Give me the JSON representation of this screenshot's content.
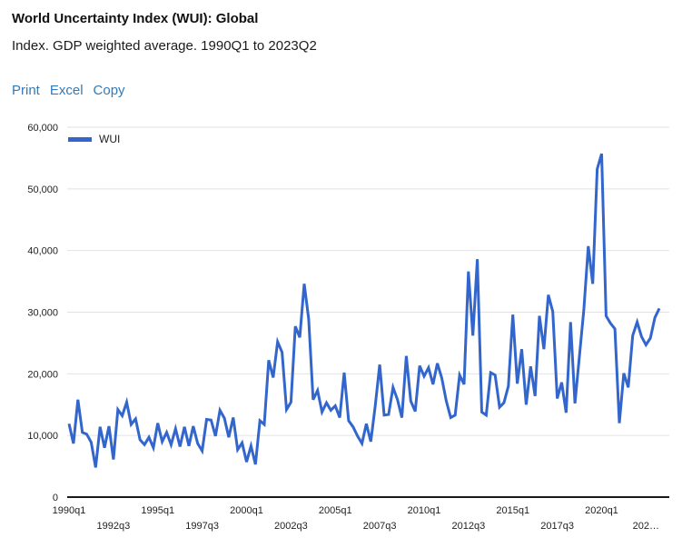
{
  "header": {
    "title": "World Uncertainty Index (WUI): Global",
    "subtitle": "Index. GDP weighted average. 1990Q1 to 2023Q2"
  },
  "toolbar": {
    "print_label": "Print",
    "excel_label": "Excel",
    "copy_label": "Copy"
  },
  "chart_data": {
    "type": "line",
    "title": "World Uncertainty Index (WUI): Global",
    "subtitle": "Index. GDP weighted average. 1990Q1 to 2023Q2",
    "series_name": "WUI",
    "legend": {
      "label": "WUI",
      "position": "top-left"
    },
    "line_color": "#3366cc",
    "grid": true,
    "frequency": "quarterly",
    "x_start": "1990q1",
    "x_end": "2023q2",
    "ylim": [
      0,
      60000
    ],
    "y_ticks": [
      {
        "value": 0,
        "label": "0"
      },
      {
        "value": 10000,
        "label": "10,000"
      },
      {
        "value": 20000,
        "label": "20,000"
      },
      {
        "value": 30000,
        "label": "30,000"
      },
      {
        "value": 40000,
        "label": "40,000"
      },
      {
        "value": 50000,
        "label": "50,000"
      },
      {
        "value": 60000,
        "label": "60,000"
      }
    ],
    "x_ticks": [
      {
        "index": 0,
        "label": "1990q1",
        "row": 1
      },
      {
        "index": 10,
        "label": "1992q3",
        "row": 2
      },
      {
        "index": 20,
        "label": "1995q1",
        "row": 1
      },
      {
        "index": 30,
        "label": "1997q3",
        "row": 2
      },
      {
        "index": 40,
        "label": "2000q1",
        "row": 1
      },
      {
        "index": 50,
        "label": "2002q3",
        "row": 2
      },
      {
        "index": 60,
        "label": "2005q1",
        "row": 1
      },
      {
        "index": 70,
        "label": "2007q3",
        "row": 2
      },
      {
        "index": 80,
        "label": "2010q1",
        "row": 1
      },
      {
        "index": 90,
        "label": "2012q3",
        "row": 2
      },
      {
        "index": 100,
        "label": "2015q1",
        "row": 1
      },
      {
        "index": 110,
        "label": "2017q3",
        "row": 2
      },
      {
        "index": 120,
        "label": "2020q1",
        "row": 1
      },
      {
        "index": 130,
        "label": "202…",
        "row": 2
      }
    ],
    "values": [
      11900,
      8700,
      15800,
      10500,
      10200,
      8900,
      4800,
      11400,
      8000,
      11500,
      6100,
      14200,
      13200,
      15400,
      11800,
      12700,
      9300,
      8500,
      9700,
      8000,
      12000,
      9000,
      10500,
      8500,
      11100,
      8200,
      11400,
      8300,
      11500,
      8700,
      7500,
      12600,
      12500,
      9900,
      14100,
      12800,
      9700,
      12900,
      7700,
      8800,
      5700,
      8300,
      5300,
      12400,
      11800,
      22200,
      19400,
      25200,
      23500,
      14200,
      15400,
      27700,
      25900,
      34600,
      28900,
      15800,
      17300,
      13800,
      15300,
      14100,
      14800,
      12900,
      20200,
      12400,
      11400,
      9900,
      8700,
      11900,
      9000,
      14800,
      21500,
      13300,
      13400,
      17800,
      15800,
      12900,
      22900,
      15600,
      13900,
      21300,
      19600,
      21000,
      18300,
      21700,
      19300,
      15600,
      12900,
      13300,
      19800,
      18300,
      36600,
      26200,
      38600,
      13800,
      13300,
      20200,
      19800,
      14600,
      15300,
      18000,
      29600,
      18400,
      24000,
      15000,
      21200,
      16400,
      29400,
      24000,
      32800,
      30100,
      16000,
      18600,
      13700,
      28400,
      15200,
      22800,
      30400,
      40700,
      34600,
      53200,
      55700,
      29400,
      28200,
      27300,
      12000,
      20100,
      17800,
      26200,
      28400,
      26000,
      24700,
      25800,
      29100,
      30600
    ]
  }
}
